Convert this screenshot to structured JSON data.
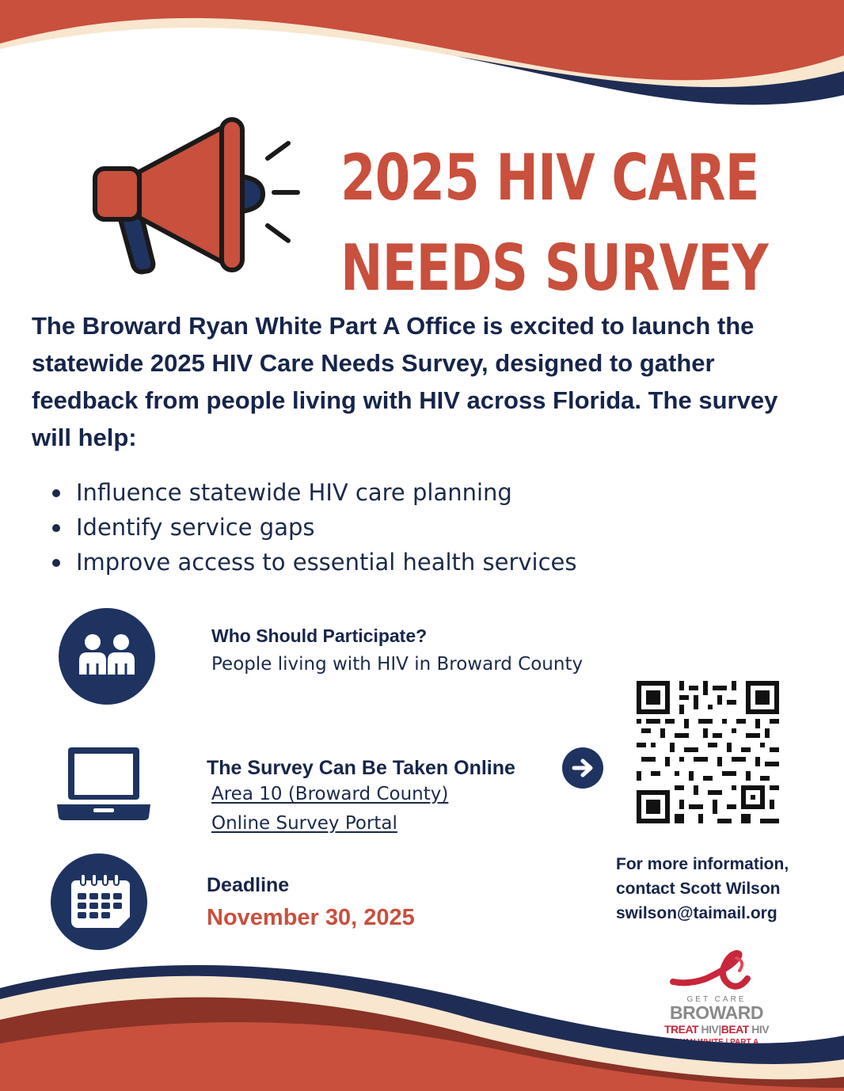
{
  "header": {
    "title_line1": "2025 HIV CARE",
    "title_line2": "NEEDS SURVEY"
  },
  "intro": {
    "text": "The Broward Ryan White Part A Office is excited to launch the statewide 2025 HIV Care Needs Survey, designed to gather feedback from people living with HIV across Florida. The survey will help:"
  },
  "bullets": [
    "Influence statewide HIV care planning",
    "Identify service gaps",
    "Improve access to essential health services"
  ],
  "who": {
    "title": "Who Should Participate?",
    "text": "People living with HIV in Broward County"
  },
  "online": {
    "title": "The Survey Can Be Taken Online",
    "link1": "Area 10 (Broward County)",
    "link2": "Online Survey Portal"
  },
  "deadline": {
    "title": "Deadline",
    "date": "November 30, 2025"
  },
  "contact": {
    "line1": "For more information,",
    "line2": "contact Scott Wilson",
    "line3": "swilson@taimail.org"
  },
  "logo": {
    "get_care": "GET CARE",
    "broward": "BROWARD",
    "treat": "TREAT",
    "hiv1": "HIV",
    "beat": "BEAT",
    "hiv2": "HIV",
    "ryan_white": "RYAN WHITE | PART A"
  },
  "colors": {
    "accent_red": "#c8503d",
    "navy": "#1f3361",
    "cream": "#f8e6cf"
  },
  "icons": [
    "megaphone-icon",
    "people-icon",
    "laptop-icon",
    "arrow-right-icon",
    "qr-code",
    "calendar-icon",
    "red-ribbon-logo"
  ]
}
